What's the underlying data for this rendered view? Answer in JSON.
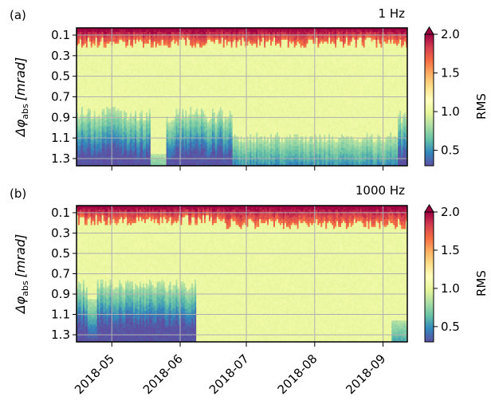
{
  "chart_data": [
    {
      "type": "heatmap",
      "panel_label": "(a)",
      "title": "1 Hz",
      "ylabel_symbol": "Δφ",
      "ylabel_sub": "abs",
      "ylabel_unit": "[mrad]",
      "yticks": [
        "0.1",
        "0.3",
        "0.5",
        "0.7",
        "0.9",
        "1.1",
        "1.3"
      ],
      "yvalues": [
        0.1,
        0.3,
        0.5,
        0.7,
        0.9,
        1.1,
        1.3
      ],
      "y_inverted": true,
      "xticks": [
        "2018-05",
        "2018-06",
        "2018-07",
        "2018-08",
        "2018-09"
      ],
      "xrange": [
        "2018-04-15",
        "2018-09-12"
      ],
      "xticklabels_shown": false,
      "grid": true,
      "colorbar": {
        "label": "RMS",
        "ticks": [
          "0.5",
          "1.0",
          "1.5",
          "2.0"
        ],
        "tick_values": [
          0.5,
          1.0,
          1.5,
          2.0
        ],
        "range": [
          0.3,
          2.0
        ],
        "extend": "max",
        "colormap": "Spectral"
      },
      "pattern": {
        "top_band_depth": 0.13,
        "high_value_onset": 0.8,
        "high_value_low_onset": 1.25
      }
    },
    {
      "type": "heatmap",
      "panel_label": "(b)",
      "title": "1000 Hz",
      "ylabel_symbol": "Δφ",
      "ylabel_sub": "abs",
      "ylabel_unit": "[mrad]",
      "yticks": [
        "0.1",
        "0.3",
        "0.5",
        "0.7",
        "0.9",
        "1.1",
        "1.3"
      ],
      "yvalues": [
        0.1,
        0.3,
        0.5,
        0.7,
        0.9,
        1.1,
        1.3
      ],
      "y_inverted": true,
      "xticks": [
        "2018-05",
        "2018-06",
        "2018-07",
        "2018-08",
        "2018-09"
      ],
      "xrange": [
        "2018-04-15",
        "2018-09-12"
      ],
      "xticklabels_shown": true,
      "grid": true,
      "colorbar": {
        "label": "RMS",
        "ticks": [
          "0.5",
          "1.0",
          "1.5",
          "2.0"
        ],
        "tick_values": [
          0.5,
          1.0,
          1.5,
          2.0
        ],
        "range": [
          0.3,
          2.0
        ],
        "extend": "max",
        "colormap": "Spectral"
      },
      "pattern": {
        "top_band_depth": 0.13,
        "high_value_onset": 0.75,
        "high_value_low_onset": 1.3
      }
    }
  ]
}
